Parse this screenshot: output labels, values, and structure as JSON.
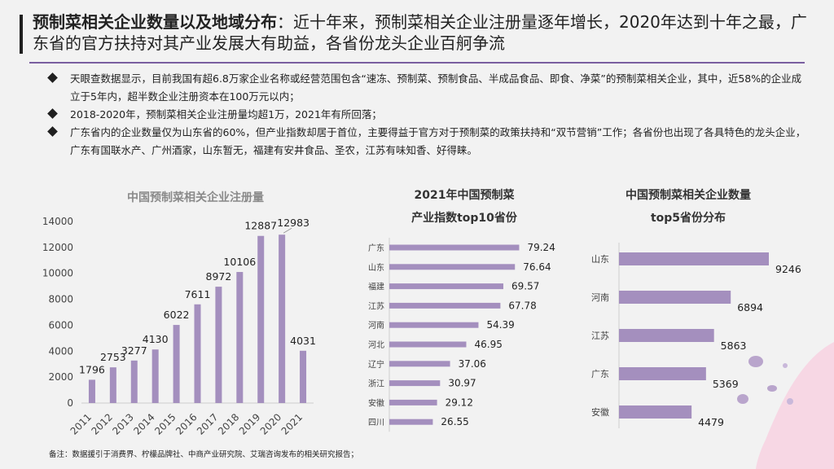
{
  "header": {
    "title_bold": "预制菜相关企业数量以及地域分布",
    "title_rest": "：近十年来，预制菜相关企业注册量逐年增长，2020年达到十年之最，广东省的官方扶持对其产业发展大有助益，各省份龙头企业百舸争流"
  },
  "bullets": [
    "天眼查数据显示，目前我国有超6.8万家企业名称或经营范围包含“速冻、预制菜、预制食品、半成品食品、即食、净菜”的预制菜相关企业，其中，近58%的企业成立于5年内，超半数企业注册资本在100万元以内；",
    "2018-2020年，预制菜相关企业注册量均超1万，2021年有所回落；",
    "广东省内的企业数量仅为山东省的60%，但产业指数却居于首位，主要得益于官方对于预制菜的政策扶持和“双节营销”工作；各省份也出现了各具特色的龙头企业，广东有国联水产、广州酒家，山东暂无，福建有安井食品、圣农，江苏有味知香、好得睐。"
  ],
  "chart_data": [
    {
      "type": "bar",
      "title": "中国预制菜相关企业注册量",
      "categories": [
        "2011",
        "2012",
        "2013",
        "2014",
        "2015",
        "2016",
        "2017",
        "2018",
        "2019",
        "2020",
        "2021"
      ],
      "values": [
        1796,
        2753,
        3277,
        4130,
        6022,
        7611,
        8972,
        10106,
        12887,
        12983,
        4031
      ],
      "yticks": [
        0,
        2000,
        4000,
        6000,
        8000,
        10000,
        12000,
        14000
      ],
      "ylim": [
        0,
        14000
      ],
      "color": "#a48fbe"
    },
    {
      "type": "bar",
      "orientation": "horizontal",
      "title_lines": [
        "2021年中国预制菜",
        "产业指数top10省份"
      ],
      "categories": [
        "广东",
        "山东",
        "福建",
        "江苏",
        "河南",
        "河北",
        "辽宁",
        "浙江",
        "安徽",
        "四川"
      ],
      "values": [
        79.24,
        76.64,
        69.57,
        67.78,
        54.39,
        46.95,
        37.06,
        30.97,
        29.12,
        26.55
      ],
      "color": "#a48fbe"
    },
    {
      "type": "bar",
      "orientation": "horizontal",
      "title_lines": [
        "中国预制菜相关企业数量",
        "top5省份分布"
      ],
      "categories": [
        "山东",
        "河南",
        "江苏",
        "广东",
        "安徽"
      ],
      "values": [
        9246,
        6894,
        5863,
        5369,
        4479
      ],
      "color": "#a48fbe"
    }
  ],
  "footnote": "备注：数据援引于消费界、柠檬品牌社、中商产业研究院、艾瑞咨询发布的相关研究报告；"
}
